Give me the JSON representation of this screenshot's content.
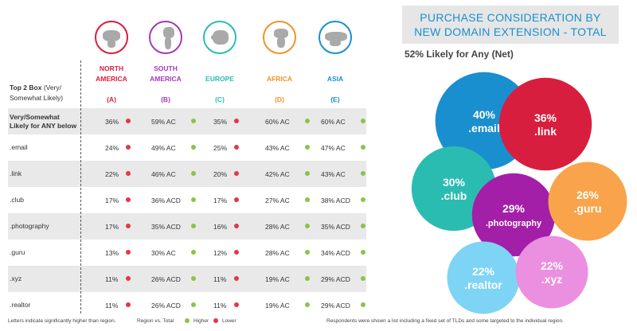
{
  "colors": {
    "higher_dot": "#8bc34a",
    "lower_dot": "#e8344a",
    "north_america": "#d81e3e",
    "south_america": "#a33ab5",
    "europe": "#2bbcb1",
    "africa": "#f39324",
    "asia": "#1a8fcf",
    "title": "#1a8fcf"
  },
  "table": {
    "corner_label_bold": "Top 2 Box",
    "corner_label_rest": " (Very/ Somewhat Likely)",
    "regions": [
      {
        "name": "NORTH AMERICA",
        "letter": "(A)",
        "color": "#d81e3e",
        "icon": "north-america-map-icon"
      },
      {
        "name": "SOUTH AMERICA",
        "letter": "(B)",
        "color": "#a33ab5",
        "icon": "south-america-map-icon"
      },
      {
        "name": "EUROPE",
        "letter": "(C)",
        "color": "#2bbcb1",
        "icon": "europe-map-icon"
      },
      {
        "name": "AFRICA",
        "letter": "(D)",
        "color": "#f39324",
        "icon": "africa-map-icon"
      },
      {
        "name": "ASIA",
        "letter": "(E)",
        "color": "#1a8fcf",
        "icon": "asia-map-icon"
      }
    ],
    "rows": [
      {
        "label": "Very/Somewhat Likely for ANY below",
        "bold": true,
        "cells": [
          {
            "v": "36%",
            "d": "lower"
          },
          {
            "v": "59% AC",
            "d": "higher"
          },
          {
            "v": "35%",
            "d": "lower"
          },
          {
            "v": "60% AC",
            "d": "higher"
          },
          {
            "v": "60%  AC",
            "d": "higher"
          }
        ]
      },
      {
        "label": ".email",
        "bold": false,
        "cells": [
          {
            "v": "24%",
            "d": "lower"
          },
          {
            "v": "49% AC",
            "d": "higher"
          },
          {
            "v": "25%",
            "d": "lower"
          },
          {
            "v": "43% AC",
            "d": "higher"
          },
          {
            "v": "47% AC",
            "d": "higher"
          }
        ]
      },
      {
        "label": ".link",
        "bold": false,
        "cells": [
          {
            "v": "22%",
            "d": "lower"
          },
          {
            "v": "46% AC",
            "d": "higher"
          },
          {
            "v": "20%",
            "d": "lower"
          },
          {
            "v": "42% AC",
            "d": "higher"
          },
          {
            "v": "43% AC",
            "d": "higher"
          }
        ]
      },
      {
        "label": ".club",
        "bold": false,
        "cells": [
          {
            "v": "17%",
            "d": "lower"
          },
          {
            "v": "36% ACD",
            "d": "higher"
          },
          {
            "v": "17%",
            "d": "lower"
          },
          {
            "v": "27% AC",
            "d": "higher"
          },
          {
            "v": "38% ACD",
            "d": "higher"
          }
        ]
      },
      {
        "label": ".photography",
        "bold": false,
        "cells": [
          {
            "v": "17%",
            "d": "lower"
          },
          {
            "v": "35% ACD",
            "d": "higher"
          },
          {
            "v": "16%",
            "d": "lower"
          },
          {
            "v": "28% AC",
            "d": "higher"
          },
          {
            "v": "35% ACD",
            "d": "higher"
          }
        ]
      },
      {
        "label": ".guru",
        "bold": false,
        "cells": [
          {
            "v": "13%",
            "d": "lower"
          },
          {
            "v": "30% AC",
            "d": "higher"
          },
          {
            "v": "12%",
            "d": "lower"
          },
          {
            "v": "28% AC",
            "d": "higher"
          },
          {
            "v": "34% ACD",
            "d": "higher"
          }
        ]
      },
      {
        "label": ".xyz",
        "bold": false,
        "cells": [
          {
            "v": "11%",
            "d": "lower"
          },
          {
            "v": "26% ACD",
            "d": "higher"
          },
          {
            "v": "11%",
            "d": "lower"
          },
          {
            "v": "19% AC",
            "d": "higher"
          },
          {
            "v": "29% ACD",
            "d": "higher"
          }
        ]
      },
      {
        "label": ".realtor",
        "bold": false,
        "cells": [
          {
            "v": "11%",
            "d": "lower"
          },
          {
            "v": "26% ACD",
            "d": "higher"
          },
          {
            "v": "11%",
            "d": "lower"
          },
          {
            "v": "19% AC",
            "d": "higher"
          },
          {
            "v": "29% ACD",
            "d": "higher"
          }
        ]
      }
    ],
    "footnote_left": "Letters indicate significantly higher than region.",
    "footnote_region": "Region vs. Total",
    "legend_higher": "Higher",
    "legend_lower": "Lower",
    "footnote_right": "Respondents were shown a list including a fixed set of TLDs and some targeted to the individual region."
  },
  "chart_title_line1": "PURCHASE CONSIDERATION BY",
  "chart_title_line2": "NEW DOMAIN EXTENSION - TOTAL",
  "chart_subtitle": "52% Likely for Any (Net)",
  "chart_data": {
    "type": "bubble",
    "title": "PURCHASE CONSIDERATION BY NEW DOMAIN EXTENSION - TOTAL",
    "subtitle": "52% Likely for Any (Net)",
    "bubbles": [
      {
        "label": ".email",
        "value": 40,
        "color": "#1a8fcf"
      },
      {
        "label": ".link",
        "value": 36,
        "color": "#d81e3e"
      },
      {
        "label": ".club",
        "value": 30,
        "color": "#2bbcb1"
      },
      {
        "label": ".photography",
        "value": 29,
        "color": "#a31fa8"
      },
      {
        "label": ".guru",
        "value": 26,
        "color": "#f9a44a"
      },
      {
        "label": ".realtor",
        "value": 22,
        "color": "#7ed4f4"
      },
      {
        "label": ".xyz",
        "value": 22,
        "color": "#eb8fe1"
      }
    ]
  }
}
